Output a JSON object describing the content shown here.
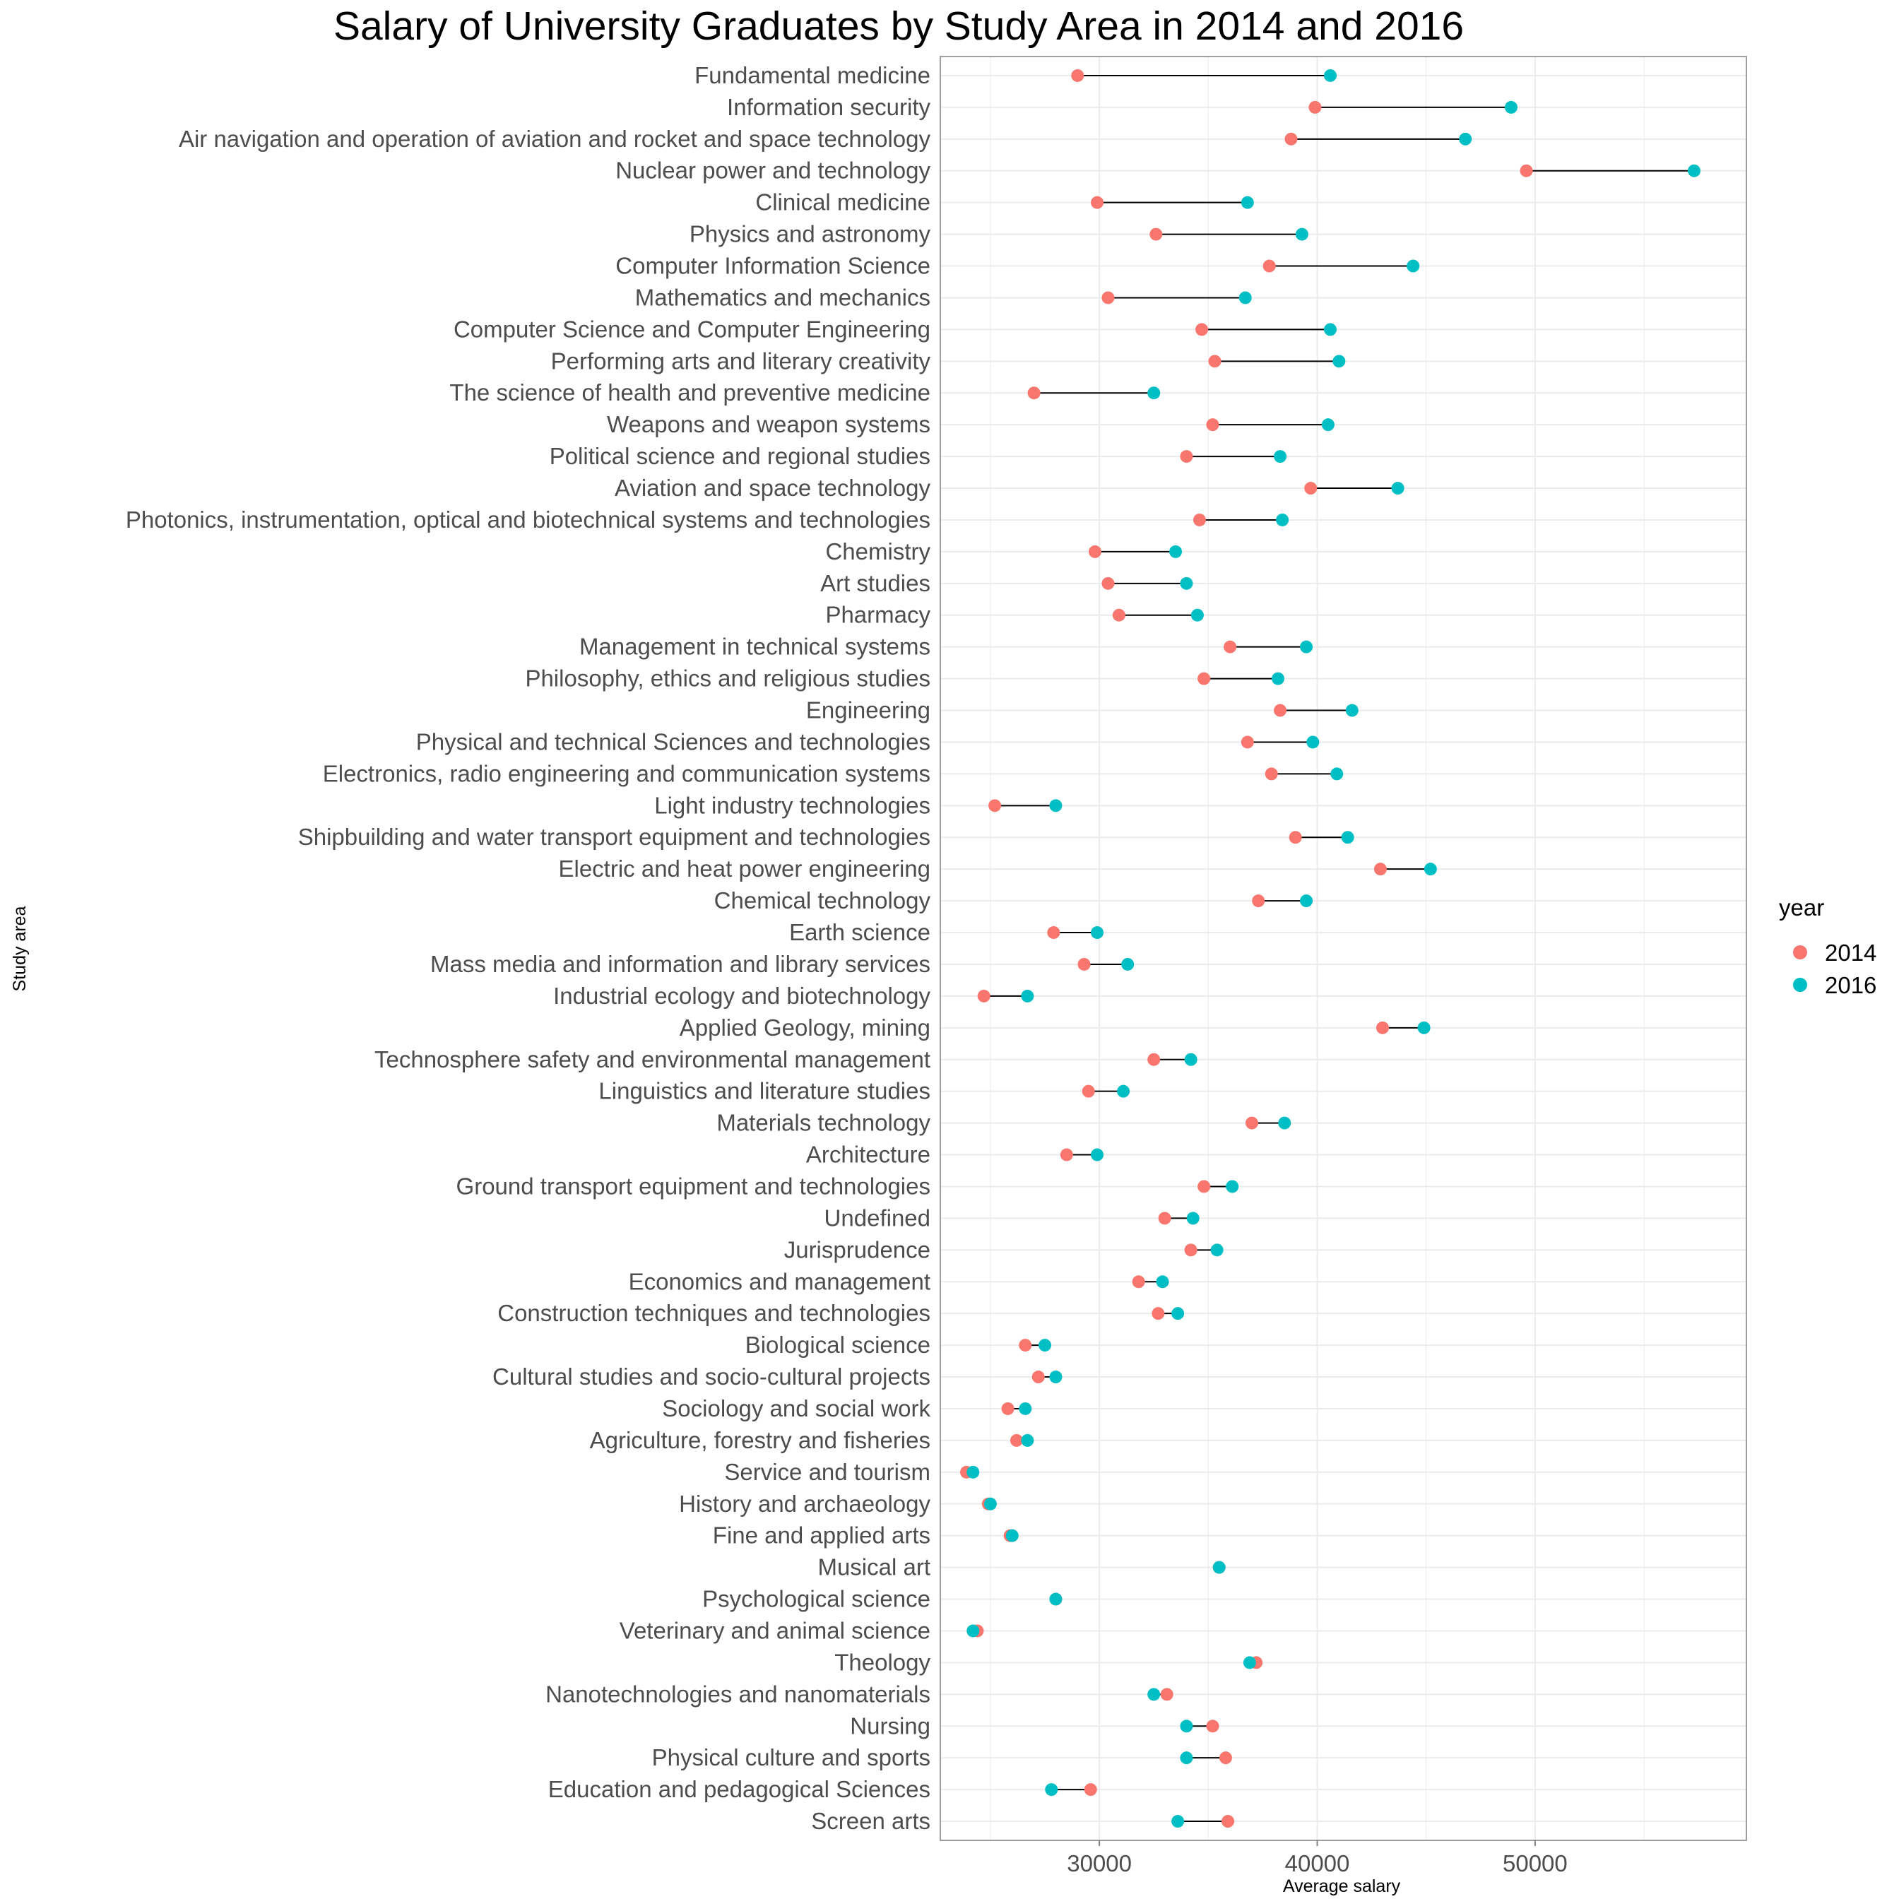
{
  "chart_data": {
    "type": "dumbbell",
    "title": "Salary of University Graduates by Study Area in 2014 and 2016",
    "xlabel": "Average salary",
    "ylabel": "Study area",
    "xlim": [
      22700,
      59700
    ],
    "x_ticks": [
      30000,
      40000,
      50000
    ],
    "x_tick_labels": [
      "30000",
      "40000",
      "50000"
    ],
    "grid": true,
    "legend": {
      "title": "year",
      "position": "right",
      "entries": [
        {
          "label": "2014",
          "color": "#F8766D"
        },
        {
          "label": "2016",
          "color": "#00BFC4"
        }
      ]
    },
    "series": [
      {
        "name": "2014",
        "color": "#F8766D"
      },
      {
        "name": "2016",
        "color": "#00BFC4"
      }
    ],
    "categories": [
      {
        "name": "Fundamental medicine",
        "v2014": 29000,
        "v2016": 40600
      },
      {
        "name": "Information security",
        "v2014": 39900,
        "v2016": 48900
      },
      {
        "name": "Air navigation and operation of aviation and rocket and space technology",
        "v2014": 38800,
        "v2016": 46800
      },
      {
        "name": "Nuclear power and technology",
        "v2014": 49600,
        "v2016": 57300
      },
      {
        "name": "Clinical medicine",
        "v2014": 29900,
        "v2016": 36800
      },
      {
        "name": "Physics and astronomy",
        "v2014": 32600,
        "v2016": 39300
      },
      {
        "name": "Computer Information Science",
        "v2014": 37800,
        "v2016": 44400
      },
      {
        "name": "Mathematics and mechanics",
        "v2014": 30400,
        "v2016": 36700
      },
      {
        "name": "Computer Science and Computer Engineering",
        "v2014": 34700,
        "v2016": 40600
      },
      {
        "name": "Performing arts and literary creativity",
        "v2014": 35300,
        "v2016": 41000
      },
      {
        "name": "The science of health and preventive medicine",
        "v2014": 27000,
        "v2016": 32500
      },
      {
        "name": "Weapons and weapon systems",
        "v2014": 35200,
        "v2016": 40500
      },
      {
        "name": "Political science and regional studies",
        "v2014": 34000,
        "v2016": 38300
      },
      {
        "name": "Aviation and space technology",
        "v2014": 39700,
        "v2016": 43700
      },
      {
        "name": "Photonics, instrumentation, optical and biotechnical systems and technologies",
        "v2014": 34600,
        "v2016": 38400
      },
      {
        "name": "Chemistry",
        "v2014": 29800,
        "v2016": 33500
      },
      {
        "name": "Art studies",
        "v2014": 30400,
        "v2016": 34000
      },
      {
        "name": "Pharmacy",
        "v2014": 30900,
        "v2016": 34500
      },
      {
        "name": "Management in technical systems",
        "v2014": 36000,
        "v2016": 39500
      },
      {
        "name": "Philosophy, ethics and religious studies",
        "v2014": 34800,
        "v2016": 38200
      },
      {
        "name": "Engineering",
        "v2014": 38300,
        "v2016": 41600
      },
      {
        "name": "Physical and technical Sciences and technologies",
        "v2014": 36800,
        "v2016": 39800
      },
      {
        "name": "Electronics, radio engineering and communication systems",
        "v2014": 37900,
        "v2016": 40900
      },
      {
        "name": "Light industry technologies",
        "v2014": 25200,
        "v2016": 28000
      },
      {
        "name": "Shipbuilding and water transport equipment and technologies",
        "v2014": 39000,
        "v2016": 41400
      },
      {
        "name": "Electric and heat power engineering",
        "v2014": 42900,
        "v2016": 45200
      },
      {
        "name": "Chemical technology",
        "v2014": 37300,
        "v2016": 39500
      },
      {
        "name": "Earth science",
        "v2014": 27900,
        "v2016": 29900
      },
      {
        "name": "Mass media and information and library services",
        "v2014": 29300,
        "v2016": 31300
      },
      {
        "name": "Industrial ecology and biotechnology",
        "v2014": 24700,
        "v2016": 26700
      },
      {
        "name": "Applied Geology, mining",
        "v2014": 43000,
        "v2016": 44900
      },
      {
        "name": "Technosphere safety and environmental management",
        "v2014": 32500,
        "v2016": 34200
      },
      {
        "name": "Linguistics and literature studies",
        "v2014": 29500,
        "v2016": 31100
      },
      {
        "name": "Materials technology",
        "v2014": 37000,
        "v2016": 38500
      },
      {
        "name": "Architecture",
        "v2014": 28500,
        "v2016": 29900
      },
      {
        "name": "Ground transport equipment and technologies",
        "v2014": 34800,
        "v2016": 36100
      },
      {
        "name": "Undefined",
        "v2014": 33000,
        "v2016": 34300
      },
      {
        "name": "Jurisprudence",
        "v2014": 34200,
        "v2016": 35400
      },
      {
        "name": "Economics and management",
        "v2014": 31800,
        "v2016": 32900
      },
      {
        "name": "Construction techniques and technologies",
        "v2014": 32700,
        "v2016": 33600
      },
      {
        "name": "Biological science",
        "v2014": 26600,
        "v2016": 27500
      },
      {
        "name": "Cultural studies and socio-cultural projects",
        "v2014": 27200,
        "v2016": 28000
      },
      {
        "name": "Sociology and social work",
        "v2014": 25800,
        "v2016": 26600
      },
      {
        "name": "Agriculture, forestry and fisheries",
        "v2014": 26200,
        "v2016": 26700
      },
      {
        "name": "Service and tourism",
        "v2014": 23900,
        "v2016": 24200
      },
      {
        "name": "History and archaeology",
        "v2014": 24900,
        "v2016": 25000
      },
      {
        "name": "Fine and applied arts",
        "v2014": 25900,
        "v2016": 26000
      },
      {
        "name": "Musical art",
        "v2014": 35500,
        "v2016": 35500
      },
      {
        "name": "Psychological science",
        "v2014": 28000,
        "v2016": 28000
      },
      {
        "name": "Veterinary and animal science",
        "v2014": 24400,
        "v2016": 24200
      },
      {
        "name": "Theology",
        "v2014": 37200,
        "v2016": 36900
      },
      {
        "name": "Nanotechnologies and nanomaterials",
        "v2014": 33100,
        "v2016": 32500
      },
      {
        "name": "Nursing",
        "v2014": 35200,
        "v2016": 34000
      },
      {
        "name": "Physical culture and sports",
        "v2014": 35800,
        "v2016": 34000
      },
      {
        "name": "Education and pedagogical Sciences",
        "v2014": 29600,
        "v2016": 27800
      },
      {
        "name": "Screen arts",
        "v2014": 35900,
        "v2016": 33600
      }
    ]
  }
}
